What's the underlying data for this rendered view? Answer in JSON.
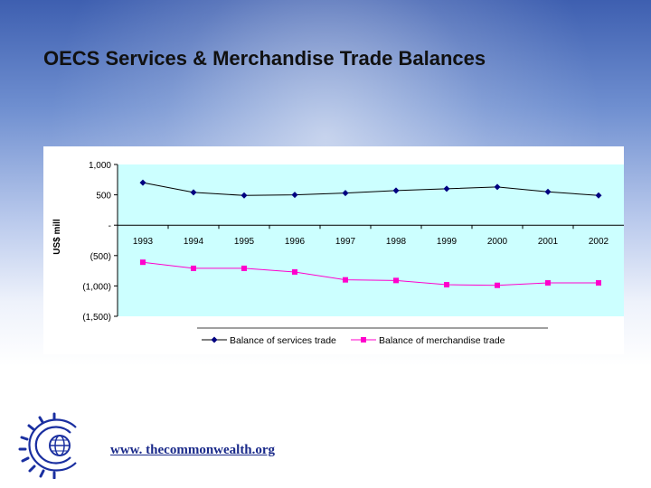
{
  "slide": {
    "title": "OECS Services & Merchandise Trade Balances",
    "footer_url": "www. thecommonwealth.org"
  },
  "chart_data": {
    "type": "line",
    "ylabel": "US$ mill",
    "ylim": [
      -1500,
      1000
    ],
    "y_ticks": [
      1000,
      500,
      0,
      -500,
      -1000,
      -1500
    ],
    "y_tick_labels": [
      "1,000",
      "500",
      "-",
      "(500)",
      "(1,000)",
      "(1,500)"
    ],
    "categories": [
      "1993",
      "1994",
      "1995",
      "1996",
      "1997",
      "1998",
      "1999",
      "2000",
      "2001",
      "2002"
    ],
    "series": [
      {
        "name": "Balance of services trade",
        "color": "#000080",
        "marker": "diamond",
        "values": [
          700,
          540,
          490,
          500,
          530,
          570,
          600,
          630,
          550,
          490
        ]
      },
      {
        "name": "Balance of merchandise trade",
        "color": "#ff00cc",
        "marker": "square",
        "values": [
          -610,
          -710,
          -710,
          -770,
          -900,
          -910,
          -980,
          -990,
          -950,
          -950
        ]
      }
    ],
    "legend_position": "bottom",
    "grid": false
  }
}
